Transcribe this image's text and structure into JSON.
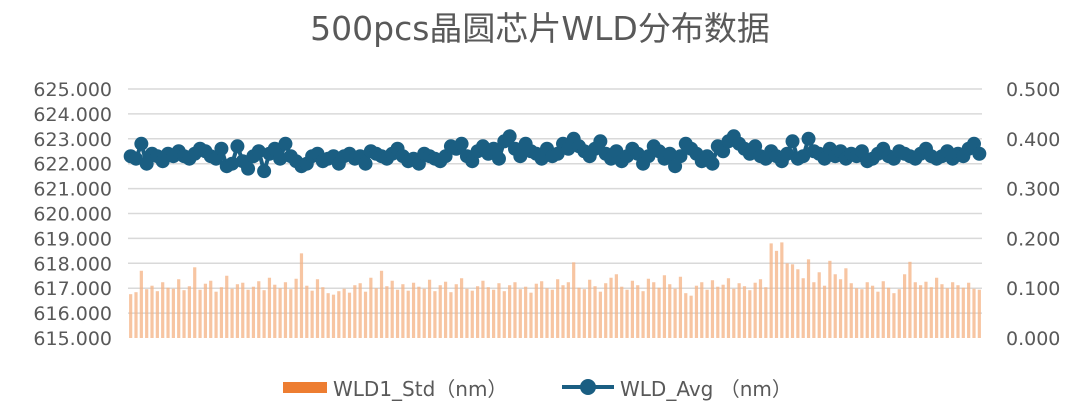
{
  "chart_data": {
    "type": "bar+line",
    "title": "500pcs晶圆芯片WLD分布数据",
    "y_left": {
      "range": [
        615,
        625
      ],
      "ticks": [
        "615.000",
        "616.000",
        "617.000",
        "618.000",
        "619.000",
        "620.000",
        "621.000",
        "622.000",
        "623.000",
        "624.000",
        "625.000"
      ]
    },
    "y_right": {
      "range": [
        0,
        0.5
      ],
      "ticks": [
        "0.000",
        "0.100",
        "0.200",
        "0.300",
        "0.400",
        "0.500"
      ]
    },
    "grid": true,
    "legend_position": "bottom",
    "series": [
      {
        "name": "WLD1_Std（nm）",
        "type": "bar",
        "axis": "right",
        "color": "#ed7d31",
        "values": [
          0.088,
          0.092,
          0.135,
          0.098,
          0.105,
          0.094,
          0.112,
          0.101,
          0.099,
          0.118,
          0.096,
          0.104,
          0.142,
          0.097,
          0.109,
          0.115,
          0.093,
          0.102,
          0.125,
          0.099,
          0.108,
          0.111,
          0.097,
          0.103,
          0.114,
          0.096,
          0.121,
          0.107,
          0.1,
          0.112,
          0.098,
          0.119,
          0.17,
          0.105,
          0.095,
          0.118,
          0.102,
          0.09,
          0.087,
          0.094,
          0.099,
          0.091,
          0.106,
          0.11,
          0.093,
          0.121,
          0.1,
          0.135,
          0.104,
          0.115,
          0.097,
          0.108,
          0.095,
          0.111,
          0.103,
          0.099,
          0.117,
          0.094,
          0.106,
          0.113,
          0.092,
          0.108,
          0.12,
          0.099,
          0.095,
          0.104,
          0.115,
          0.102,
          0.097,
          0.11,
          0.094,
          0.106,
          0.112,
          0.098,
          0.103,
          0.091,
          0.109,
          0.114,
          0.1,
          0.097,
          0.118,
          0.106,
          0.112,
          0.152,
          0.101,
          0.098,
          0.117,
          0.104,
          0.093,
          0.11,
          0.121,
          0.128,
          0.103,
          0.097,
          0.115,
          0.106,
          0.094,
          0.119,
          0.112,
          0.101,
          0.126,
          0.108,
          0.099,
          0.123,
          0.09,
          0.085,
          0.105,
          0.112,
          0.097,
          0.116,
          0.103,
          0.107,
          0.12,
          0.099,
          0.11,
          0.104,
          0.096,
          0.111,
          0.118,
          0.102,
          0.19,
          0.175,
          0.192,
          0.15,
          0.148,
          0.138,
          0.12,
          0.158,
          0.112,
          0.132,
          0.105,
          0.155,
          0.128,
          0.118,
          0.14,
          0.11,
          0.1,
          0.098,
          0.112,
          0.105,
          0.093,
          0.114,
          0.101,
          0.09,
          0.098,
          0.128,
          0.153,
          0.112,
          0.106,
          0.113,
          0.102,
          0.121,
          0.108,
          0.1,
          0.112,
          0.106,
          0.101,
          0.111,
          0.099,
          0.097
        ]
      },
      {
        "name": "WLD_Avg （nm）",
        "type": "line",
        "axis": "left",
        "color": "#1a5e82",
        "values": [
          622.3,
          622.2,
          622.8,
          622.0,
          622.4,
          622.3,
          622.1,
          622.4,
          622.3,
          622.5,
          622.3,
          622.2,
          622.4,
          622.6,
          622.5,
          622.3,
          622.2,
          622.6,
          621.9,
          622.0,
          622.7,
          622.1,
          621.8,
          622.3,
          622.5,
          621.7,
          622.4,
          622.6,
          622.2,
          622.8,
          622.3,
          622.1,
          621.9,
          622.0,
          622.3,
          622.4,
          622.1,
          622.2,
          622.3,
          622.0,
          622.3,
          622.4,
          622.2,
          622.3,
          622.0,
          622.5,
          622.4,
          622.3,
          622.2,
          622.4,
          622.6,
          622.3,
          622.1,
          622.2,
          622.0,
          622.4,
          622.3,
          622.2,
          622.1,
          622.3,
          622.7,
          622.6,
          622.8,
          622.3,
          622.1,
          622.5,
          622.7,
          622.4,
          622.6,
          622.2,
          622.9,
          623.1,
          622.6,
          622.3,
          622.8,
          622.5,
          622.4,
          622.2,
          622.6,
          622.3,
          622.4,
          622.8,
          622.6,
          623.0,
          622.7,
          622.5,
          622.3,
          622.6,
          622.9,
          622.4,
          622.2,
          622.5,
          622.1,
          622.3,
          622.6,
          622.4,
          622.0,
          622.3,
          622.7,
          622.5,
          622.2,
          622.4,
          621.9,
          622.3,
          622.8,
          622.6,
          622.4,
          622.1,
          622.3,
          622.0,
          622.7,
          622.5,
          622.9,
          623.1,
          622.8,
          622.6,
          622.4,
          622.7,
          622.3,
          622.2,
          622.5,
          622.3,
          622.1,
          622.4,
          622.9,
          622.2,
          622.3,
          623.0,
          622.5,
          622.4,
          622.2,
          622.6,
          622.3,
          622.5,
          622.2,
          622.4,
          622.3,
          622.5,
          622.1,
          622.2,
          622.4,
          622.6,
          622.3,
          622.2,
          622.5,
          622.4,
          622.3,
          622.2,
          622.4,
          622.6,
          622.3,
          622.2,
          622.3,
          622.5,
          622.2,
          622.4,
          622.3,
          622.6,
          622.8,
          622.4
        ]
      }
    ]
  }
}
